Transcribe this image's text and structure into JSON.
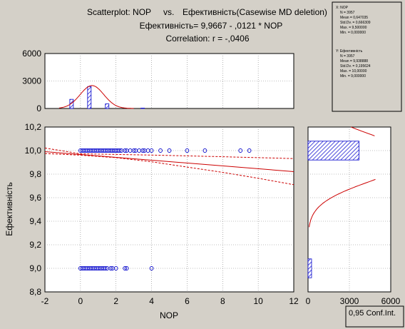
{
  "header": {
    "line1_left": "Scatterplot: NOP",
    "line1_vs": "vs.",
    "line1_right": "Ефективність(Casewise MD deletion)",
    "line2": "Ефективність= 9,9667 - ,0121  * NOP",
    "line3": "Correlation: r = -,0406"
  },
  "legend": {
    "x_title": "X:  NOP",
    "x_lines": [
      "N = 3957",
      "Mean = 0,647035",
      "Std.Dv. = 0,666309",
      "Max. = 9,500000",
      "Min. = 0,000000"
    ],
    "y_title": "Y:  Ефективність",
    "y_lines": [
      "N = 3957",
      "Mean = 9,938888",
      "Std.Dv. = 0,195624",
      "Max. = 10,00000",
      "Min. = 9,000000"
    ]
  },
  "conf_label": "0,95 Conf.Int.",
  "colors": {
    "points": "#0000cc",
    "fit": "#cc0000",
    "bars": "#0000cc",
    "background": "#d4d0c8",
    "plot_bg": "#ffffff"
  },
  "chart_data": {
    "type": "scatter",
    "xlabel": "NOP",
    "ylabel": "Ефективність",
    "xlim": [
      -2,
      12
    ],
    "ylim": [
      8.8,
      10.2
    ],
    "x_ticks": [
      -2,
      0,
      2,
      4,
      6,
      8,
      10,
      12
    ],
    "x_tick_labels": [
      "-2",
      "0",
      "2",
      "4",
      "6",
      "8",
      "10",
      "12"
    ],
    "y_ticks": [
      8.8,
      9.0,
      9.2,
      9.4,
      9.6,
      9.8,
      10.0,
      10.2
    ],
    "y_tick_labels": [
      "8,8",
      "9,0",
      "9,2",
      "9,4",
      "9,6",
      "9,8",
      "10,0",
      "10,2"
    ],
    "grid": true,
    "regression": {
      "intercept": 9.9667,
      "slope": -0.0121
    },
    "conf_band": {
      "x": [
        -2,
        0,
        2,
        4,
        6,
        8,
        10,
        12
      ],
      "lower": [
        9.975,
        9.961,
        9.94,
        9.905,
        9.86,
        9.815,
        9.765,
        9.71
      ],
      "upper": [
        10.022,
        9.973,
        9.967,
        9.962,
        9.955,
        9.948,
        9.94,
        9.932
      ]
    },
    "points": [
      {
        "x": 0.0,
        "y": 10.0
      },
      {
        "x": 0.1,
        "y": 10.0
      },
      {
        "x": 0.2,
        "y": 10.0
      },
      {
        "x": 0.3,
        "y": 10.0
      },
      {
        "x": 0.4,
        "y": 10.0
      },
      {
        "x": 0.5,
        "y": 10.0
      },
      {
        "x": 0.6,
        "y": 10.0
      },
      {
        "x": 0.7,
        "y": 10.0
      },
      {
        "x": 0.8,
        "y": 10.0
      },
      {
        "x": 0.9,
        "y": 10.0
      },
      {
        "x": 1.0,
        "y": 10.0
      },
      {
        "x": 1.1,
        "y": 10.0
      },
      {
        "x": 1.2,
        "y": 10.0
      },
      {
        "x": 1.3,
        "y": 10.0
      },
      {
        "x": 1.4,
        "y": 10.0
      },
      {
        "x": 1.5,
        "y": 10.0
      },
      {
        "x": 1.6,
        "y": 10.0
      },
      {
        "x": 1.7,
        "y": 10.0
      },
      {
        "x": 1.8,
        "y": 10.0
      },
      {
        "x": 1.9,
        "y": 10.0
      },
      {
        "x": 2.0,
        "y": 10.0
      },
      {
        "x": 2.1,
        "y": 10.0
      },
      {
        "x": 2.2,
        "y": 10.0
      },
      {
        "x": 2.3,
        "y": 10.0
      },
      {
        "x": 2.5,
        "y": 10.0
      },
      {
        "x": 2.6,
        "y": 10.0
      },
      {
        "x": 2.8,
        "y": 10.0
      },
      {
        "x": 3.0,
        "y": 10.0
      },
      {
        "x": 3.1,
        "y": 10.0
      },
      {
        "x": 3.3,
        "y": 10.0
      },
      {
        "x": 3.5,
        "y": 10.0
      },
      {
        "x": 3.6,
        "y": 10.0
      },
      {
        "x": 3.8,
        "y": 10.0
      },
      {
        "x": 4.0,
        "y": 10.0
      },
      {
        "x": 4.5,
        "y": 10.0
      },
      {
        "x": 5.0,
        "y": 10.0
      },
      {
        "x": 6.0,
        "y": 10.0
      },
      {
        "x": 7.0,
        "y": 10.0
      },
      {
        "x": 9.0,
        "y": 10.0
      },
      {
        "x": 9.5,
        "y": 10.0
      },
      {
        "x": 0.0,
        "y": 9.0
      },
      {
        "x": 0.1,
        "y": 9.0
      },
      {
        "x": 0.2,
        "y": 9.0
      },
      {
        "x": 0.3,
        "y": 9.0
      },
      {
        "x": 0.4,
        "y": 9.0
      },
      {
        "x": 0.5,
        "y": 9.0
      },
      {
        "x": 0.6,
        "y": 9.0
      },
      {
        "x": 0.7,
        "y": 9.0
      },
      {
        "x": 0.8,
        "y": 9.0
      },
      {
        "x": 0.9,
        "y": 9.0
      },
      {
        "x": 1.0,
        "y": 9.0
      },
      {
        "x": 1.1,
        "y": 9.0
      },
      {
        "x": 1.2,
        "y": 9.0
      },
      {
        "x": 1.3,
        "y": 9.0
      },
      {
        "x": 1.4,
        "y": 9.0
      },
      {
        "x": 1.5,
        "y": 9.0
      },
      {
        "x": 1.7,
        "y": 9.0
      },
      {
        "x": 1.8,
        "y": 9.0
      },
      {
        "x": 2.0,
        "y": 9.0
      },
      {
        "x": 2.5,
        "y": 9.0
      },
      {
        "x": 2.6,
        "y": 9.0
      },
      {
        "x": 4.0,
        "y": 9.0
      }
    ],
    "x_histogram": {
      "ylim": [
        0,
        6000
      ],
      "y_ticks": [
        0,
        3000,
        6000
      ],
      "y_tick_labels": [
        "0",
        "3000",
        "6000"
      ],
      "bins": [
        {
          "x0": -0.6,
          "x1": -0.4,
          "count": 1000
        },
        {
          "x0": 0.4,
          "x1": 0.6,
          "count": 2400
        },
        {
          "x0": 1.4,
          "x1": 1.6,
          "count": 500
        },
        {
          "x0": 3.4,
          "x1": 3.6,
          "count": 40
        }
      ],
      "normal_curve": {
        "mean": 0.647035,
        "sd": 0.666309,
        "peak": 2500
      }
    },
    "y_histogram": {
      "xlim": [
        0,
        6000
      ],
      "x_ticks": [
        0,
        3000,
        6000
      ],
      "x_tick_labels": [
        "0",
        "3000",
        "6000"
      ],
      "bins": [
        {
          "y0": 9.92,
          "y1": 10.08,
          "count": 3700
        },
        {
          "y0": 8.92,
          "y1": 9.08,
          "count": 257
        }
      ]
    }
  }
}
